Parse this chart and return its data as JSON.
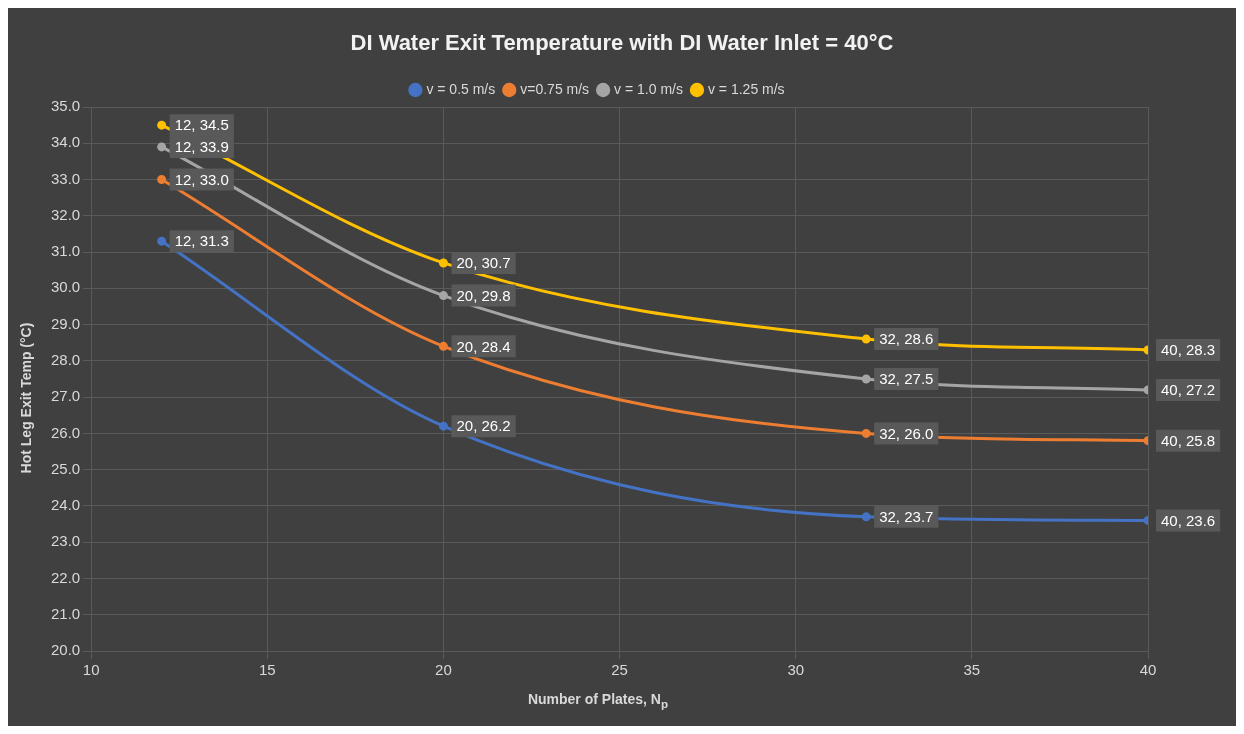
{
  "chart_data": {
    "type": "line",
    "title": "DI Water Exit Temperature with DI Water Inlet = 40°C",
    "xlabel": "Number of Plates, N$_{p}$",
    "ylabel": "Hot Leg Exit Temp (°C)",
    "x": [
      12,
      20,
      32,
      40
    ],
    "series": [
      {
        "name": "v = 0.5 m/s",
        "color": "#4472c4",
        "values": [
          31.3,
          26.2,
          23.7,
          23.6
        ],
        "value_labels": [
          "12, 31.3",
          "20, 26.2",
          "32, 23.7",
          "40, 23.6"
        ]
      },
      {
        "name": "v=0.75 m/s",
        "color": "#ed7d31",
        "values": [
          33.0,
          28.4,
          26.0,
          25.8
        ],
        "value_labels": [
          "12, 33.0",
          "20, 28.4",
          "32, 26.0",
          "40, 25.8"
        ]
      },
      {
        "name": "v = 1.0 m/s",
        "color": "#a5a5a5",
        "values": [
          33.9,
          29.8,
          27.5,
          27.2
        ],
        "value_labels": [
          "12, 33.9",
          "20, 29.8",
          "32, 27.5",
          "40, 27.2"
        ]
      },
      {
        "name": "v = 1.25 m/s",
        "color": "#ffc000",
        "values": [
          34.5,
          30.7,
          28.6,
          28.3
        ],
        "value_labels": [
          "12, 34.5",
          "20, 30.7",
          "32, 28.6",
          "40, 28.3"
        ]
      }
    ],
    "xlim": [
      10,
      40
    ],
    "xticks": [
      10,
      15,
      20,
      25,
      30,
      35,
      40
    ],
    "ylim": [
      20,
      35
    ],
    "yticks": [
      {
        "value": 20,
        "label": "20.0"
      },
      {
        "value": 21,
        "label": "21.0"
      },
      {
        "value": 22,
        "label": "22.0"
      },
      {
        "value": 23,
        "label": "23.0"
      },
      {
        "value": 24,
        "label": "24.0"
      },
      {
        "value": 25,
        "label": "25.0"
      },
      {
        "value": 26,
        "label": "26.0"
      },
      {
        "value": 27,
        "label": "27.0"
      },
      {
        "value": 28,
        "label": "28.0"
      },
      {
        "value": 29,
        "label": "29.0"
      },
      {
        "value": 30,
        "label": "30.0"
      },
      {
        "value": 31,
        "label": "31.0"
      },
      {
        "value": 32,
        "label": "32.0"
      },
      {
        "value": 33,
        "label": "33.0"
      },
      {
        "value": 34,
        "label": "34.0"
      },
      {
        "value": 35,
        "label": "35.0"
      }
    ],
    "grid": true,
    "legend": "top",
    "marker": "circle",
    "line_style": "solid"
  }
}
